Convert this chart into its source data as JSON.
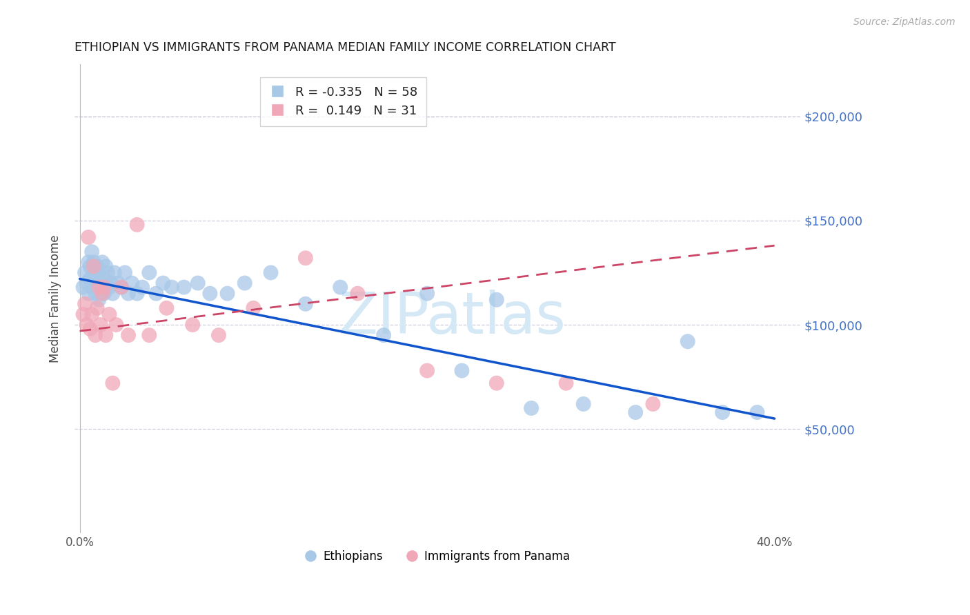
{
  "title": "ETHIOPIAN VS IMMIGRANTS FROM PANAMA MEDIAN FAMILY INCOME CORRELATION CHART",
  "source": "Source: ZipAtlas.com",
  "ylabel": "Median Family Income",
  "right_yticks": [
    50000,
    100000,
    150000,
    200000
  ],
  "right_yticklabels": [
    "$50,000",
    "$100,000",
    "$150,000",
    "$200,000"
  ],
  "xlim": [
    -0.003,
    0.415
  ],
  "ylim": [
    0,
    225000
  ],
  "legend_r_blue": "-0.335",
  "legend_n_blue": "58",
  "legend_r_pink": " 0.149",
  "legend_n_pink": "31",
  "blue_scatter_color": "#a8c8e8",
  "pink_scatter_color": "#f0a8b8",
  "blue_line_color": "#1155cc",
  "pink_line_color": "#cc4466",
  "grid_color": "#ccccdd",
  "watermark_color": "#d5e8f5",
  "ethiopians_x": [
    0.002,
    0.003,
    0.004,
    0.005,
    0.005,
    0.006,
    0.006,
    0.007,
    0.007,
    0.008,
    0.008,
    0.009,
    0.009,
    0.01,
    0.01,
    0.011,
    0.011,
    0.012,
    0.012,
    0.013,
    0.013,
    0.014,
    0.014,
    0.015,
    0.016,
    0.017,
    0.018,
    0.019,
    0.02,
    0.022,
    0.024,
    0.026,
    0.028,
    0.03,
    0.033,
    0.036,
    0.04,
    0.044,
    0.048,
    0.053,
    0.06,
    0.068,
    0.075,
    0.085,
    0.095,
    0.11,
    0.13,
    0.15,
    0.175,
    0.2,
    0.22,
    0.24,
    0.26,
    0.29,
    0.32,
    0.35,
    0.37,
    0.39
  ],
  "ethiopians_y": [
    118000,
    125000,
    120000,
    130000,
    115000,
    128000,
    122000,
    135000,
    118000,
    130000,
    125000,
    120000,
    115000,
    128000,
    118000,
    112000,
    125000,
    120000,
    115000,
    130000,
    118000,
    122000,
    115000,
    128000,
    125000,
    118000,
    120000,
    115000,
    125000,
    120000,
    118000,
    125000,
    115000,
    120000,
    115000,
    118000,
    125000,
    115000,
    120000,
    118000,
    118000,
    120000,
    115000,
    115000,
    120000,
    125000,
    110000,
    118000,
    95000,
    115000,
    78000,
    112000,
    60000,
    62000,
    58000,
    92000,
    58000,
    58000
  ],
  "panama_x": [
    0.002,
    0.003,
    0.004,
    0.005,
    0.006,
    0.007,
    0.008,
    0.009,
    0.01,
    0.011,
    0.012,
    0.013,
    0.014,
    0.015,
    0.017,
    0.019,
    0.021,
    0.024,
    0.028,
    0.033,
    0.04,
    0.05,
    0.065,
    0.08,
    0.1,
    0.13,
    0.16,
    0.2,
    0.24,
    0.28,
    0.33
  ],
  "panama_y": [
    105000,
    110000,
    100000,
    142000,
    98000,
    105000,
    128000,
    95000,
    108000,
    118000,
    100000,
    115000,
    118000,
    95000,
    105000,
    72000,
    100000,
    118000,
    95000,
    148000,
    95000,
    108000,
    100000,
    95000,
    108000,
    132000,
    115000,
    78000,
    72000,
    72000,
    62000
  ],
  "blue_trendline_x": [
    0.0,
    0.4
  ],
  "blue_trendline_y": [
    122000,
    55000
  ],
  "pink_trendline_x": [
    0.0,
    0.4
  ],
  "pink_trendline_y": [
    97000,
    138000
  ],
  "xtick_positions": [
    0.0,
    0.05,
    0.1,
    0.15,
    0.2,
    0.25,
    0.3,
    0.35,
    0.4
  ],
  "xtick_labels": [
    "0.0%",
    "",
    "",
    "",
    "",
    "",
    "",
    "",
    "40.0%"
  ]
}
